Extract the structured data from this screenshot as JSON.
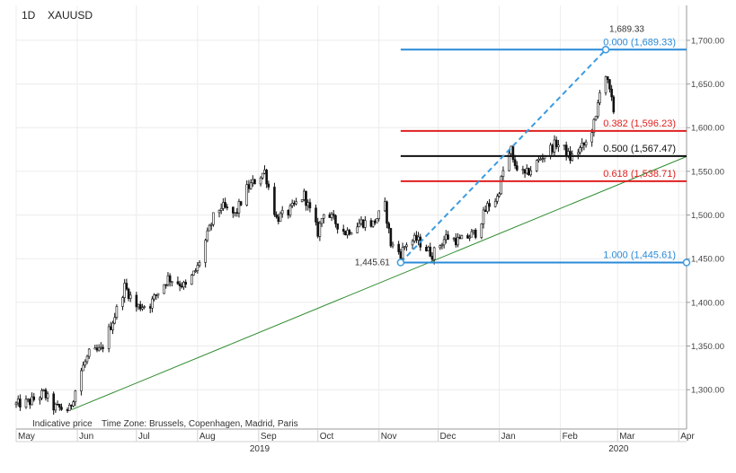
{
  "header": {
    "interval": "1D",
    "symbol": "XAUUSD"
  },
  "footer": {
    "note": "Indicative price",
    "timezone": "Time Zone: Brussels, Copenhagen, Madrid, Paris"
  },
  "chart_data": {
    "type": "candlestick",
    "symbol": "XAUUSD",
    "interval": "1D",
    "yaxis": {
      "ticks": [
        1300,
        1350,
        1400,
        1450,
        1500,
        1550,
        1600,
        1650,
        1700
      ],
      "tick_labels": [
        "1,300.00",
        "1,350.00",
        "1,400.00",
        "1,450.00",
        "1,500.00",
        "1,550.00",
        "1,600.00",
        "1,650.00",
        "1,700.00"
      ],
      "ylim": [
        1255,
        1740
      ],
      "position": "right"
    },
    "xaxis": {
      "month_labels": [
        "May",
        "Jun",
        "Jul",
        "Aug",
        "Sep",
        "Oct",
        "Nov",
        "Dec",
        "Jan",
        "Feb",
        "Mar",
        "Apr"
      ],
      "month_starts": [
        "2019-05-01",
        "2019-06-01",
        "2019-07-01",
        "2019-08-01",
        "2019-09-01",
        "2019-10-01",
        "2019-11-01",
        "2019-12-01",
        "2020-01-01",
        "2020-02-01",
        "2020-03-01",
        "2020-04-01"
      ],
      "year_labels": [
        {
          "label": "2019",
          "date": "2019-09-01"
        },
        {
          "label": "2020",
          "date": "2020-03-01"
        }
      ],
      "range": [
        "2019-05-01",
        "2020-04-05"
      ]
    },
    "grid": true,
    "price_path": [
      [
        "2019-05-01",
        1283
      ],
      [
        "2019-05-08",
        1286
      ],
      [
        "2019-05-15",
        1296
      ],
      [
        "2019-05-20",
        1280
      ],
      [
        "2019-05-28",
        1277
      ],
      [
        "2019-06-03",
        1322
      ],
      [
        "2019-06-07",
        1341
      ],
      [
        "2019-06-13",
        1345
      ],
      [
        "2019-06-20",
        1385
      ],
      [
        "2019-06-25",
        1418
      ],
      [
        "2019-07-01",
        1395
      ],
      [
        "2019-07-08",
        1398
      ],
      [
        "2019-07-12",
        1412
      ],
      [
        "2019-07-17",
        1428
      ],
      [
        "2019-07-22",
        1423
      ],
      [
        "2019-07-26",
        1418
      ],
      [
        "2019-08-01",
        1440
      ],
      [
        "2019-08-05",
        1470
      ],
      [
        "2019-08-09",
        1497
      ],
      [
        "2019-08-13",
        1510
      ],
      [
        "2019-08-20",
        1500
      ],
      [
        "2019-08-26",
        1530
      ],
      [
        "2019-09-04",
        1550
      ],
      [
        "2019-09-10",
        1496
      ],
      [
        "2019-09-16",
        1503
      ],
      [
        "2019-09-24",
        1523
      ],
      [
        "2019-10-01",
        1480
      ],
      [
        "2019-10-04",
        1505
      ],
      [
        "2019-10-15",
        1480
      ],
      [
        "2019-10-23",
        1492
      ],
      [
        "2019-10-29",
        1490
      ],
      [
        "2019-11-04",
        1510
      ],
      [
        "2019-11-07",
        1467
      ],
      [
        "2019-11-12",
        1456
      ],
      [
        "2019-11-15",
        1468
      ],
      [
        "2019-11-20",
        1472
      ],
      [
        "2019-11-28",
        1455
      ],
      [
        "2019-12-05",
        1475
      ],
      [
        "2019-12-12",
        1470
      ],
      [
        "2019-12-20",
        1480
      ],
      [
        "2019-12-26",
        1510
      ],
      [
        "2019-12-31",
        1520
      ],
      [
        "2020-01-03",
        1550
      ],
      [
        "2020-01-07",
        1575
      ],
      [
        "2020-01-08",
        1560
      ],
      [
        "2020-01-14",
        1545
      ],
      [
        "2020-01-20",
        1560
      ],
      [
        "2020-01-24",
        1570
      ],
      [
        "2020-01-30",
        1582
      ],
      [
        "2020-02-03",
        1575
      ],
      [
        "2020-02-06",
        1565
      ],
      [
        "2020-02-14",
        1582
      ],
      [
        "2020-02-19",
        1610
      ],
      [
        "2020-02-21",
        1645
      ],
      [
        "2020-02-24",
        1660
      ],
      [
        "2020-02-26",
        1640
      ],
      [
        "2020-02-28",
        1620
      ]
    ],
    "trendline": {
      "color": "#2e8b2e",
      "points": [
        [
          "2019-05-29",
          1277
        ],
        [
          "2020-04-05",
          1567
        ]
      ]
    },
    "fibonacci": {
      "start": {
        "date": "2019-11-12",
        "price": 1445.61,
        "label": "1,445.61"
      },
      "end": {
        "date": "2020-02-24",
        "price": 1689.33,
        "label": "1,689.33"
      },
      "line_start_date": "2019-11-12",
      "line_end_date": "2020-04-05",
      "levels": [
        {
          "ratio": "0.000",
          "price": 1689.33,
          "label": "0.000 (1,689.33)",
          "color": "#2a8ad8"
        },
        {
          "ratio": "0.382",
          "price": 1596.23,
          "label": "0.382 (1,596.23)",
          "color": "#e02020"
        },
        {
          "ratio": "0.500",
          "price": 1567.47,
          "label": "0.500 (1,567.47)",
          "color": "#111111"
        },
        {
          "ratio": "0.618",
          "price": 1538.71,
          "label": "0.618 (1,538.71)",
          "color": "#e02020"
        },
        {
          "ratio": "1.000",
          "price": 1445.61,
          "label": "1.000 (1,445.61)",
          "color": "#2a8ad8"
        }
      ],
      "connector_color": "#3b9be0"
    }
  }
}
